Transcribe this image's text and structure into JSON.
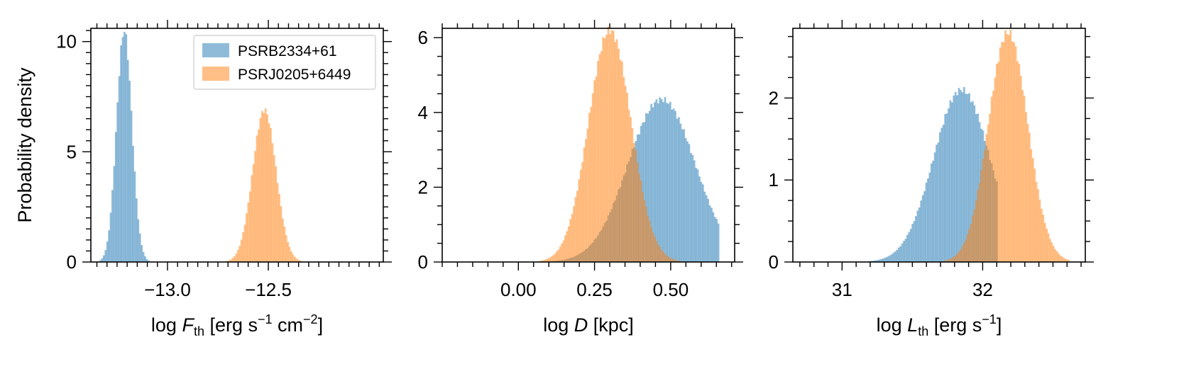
{
  "chart_data": [
    {
      "type": "histogram",
      "xlabel": "log F_th [erg s^-1 cm^-2]",
      "ylabel": "Probability density",
      "xlim": [
        -13.38,
        -11.93
      ],
      "ylim": [
        0,
        10.6
      ],
      "x_major_ticks": [
        -13.0,
        -12.5
      ],
      "x_tick_labels": [
        "−13.0",
        "−12.5"
      ],
      "x_minor_step": 0.05,
      "y_major_ticks": [
        0,
        5,
        10
      ],
      "y_tick_labels": [
        "0",
        "5",
        "10"
      ],
      "y_minor_step": 0.5,
      "legend": {
        "position": "upper-right",
        "entries": [
          "PSRB2334+61",
          "PSRJ0205+6449"
        ]
      },
      "series": [
        {
          "name": "PSRB2334+61",
          "color": "#1f77b4",
          "center": -13.215,
          "sigma": 0.038,
          "peak": 10.5,
          "range": [
            -13.34,
            -13.07
          ]
        },
        {
          "name": "PSRJ0205+6449",
          "color": "#ff7f0e",
          "center": -12.52,
          "sigma": 0.058,
          "peak": 6.9,
          "range": [
            -12.72,
            -12.3
          ]
        }
      ]
    },
    {
      "type": "histogram",
      "xlabel": "log D [kpc]",
      "ylabel": "",
      "xlim": [
        -0.25,
        0.71
      ],
      "ylim": [
        0,
        6.25
      ],
      "x_major_ticks": [
        0.0,
        0.25,
        0.5
      ],
      "x_tick_labels": [
        "0.00",
        "0.25",
        "0.50"
      ],
      "x_minor_step": 0.05,
      "y_major_ticks": [
        0,
        2,
        4,
        6
      ],
      "y_tick_labels": [
        "0",
        "2",
        "4",
        "6"
      ],
      "y_minor_step": 0.5,
      "series": [
        {
          "name": "PSRB2334+61",
          "color": "#1f77b4",
          "center": 0.47,
          "sigma": 0.11,
          "peak": 4.35,
          "range": [
            0.04,
            0.66
          ]
        },
        {
          "name": "PSRJ0205+6449",
          "color": "#ff7f0e",
          "center": 0.3,
          "sigma": 0.07,
          "peak": 6.2,
          "range": [
            0.06,
            0.57
          ]
        }
      ]
    },
    {
      "type": "histogram",
      "xlabel": "log L_th [erg s^-1]",
      "ylabel": "",
      "xlim": [
        30.65,
        32.73
      ],
      "ylim": [
        0,
        2.85
      ],
      "x_major_ticks": [
        31,
        32
      ],
      "x_tick_labels": [
        "31",
        "32"
      ],
      "x_minor_step": 0.1,
      "y_major_ticks": [
        0,
        1,
        2
      ],
      "y_tick_labels": [
        "0",
        "1",
        "2"
      ],
      "y_minor_step": 0.25,
      "series": [
        {
          "name": "PSRB2334+61",
          "color": "#1f77b4",
          "center": 31.85,
          "sigma": 0.2,
          "peak": 2.1,
          "range": [
            31.0,
            32.1
          ]
        },
        {
          "name": "PSRJ0205+6449",
          "color": "#ff7f0e",
          "center": 32.18,
          "sigma": 0.14,
          "peak": 2.8,
          "range": [
            31.72,
            32.62
          ]
        }
      ]
    }
  ]
}
